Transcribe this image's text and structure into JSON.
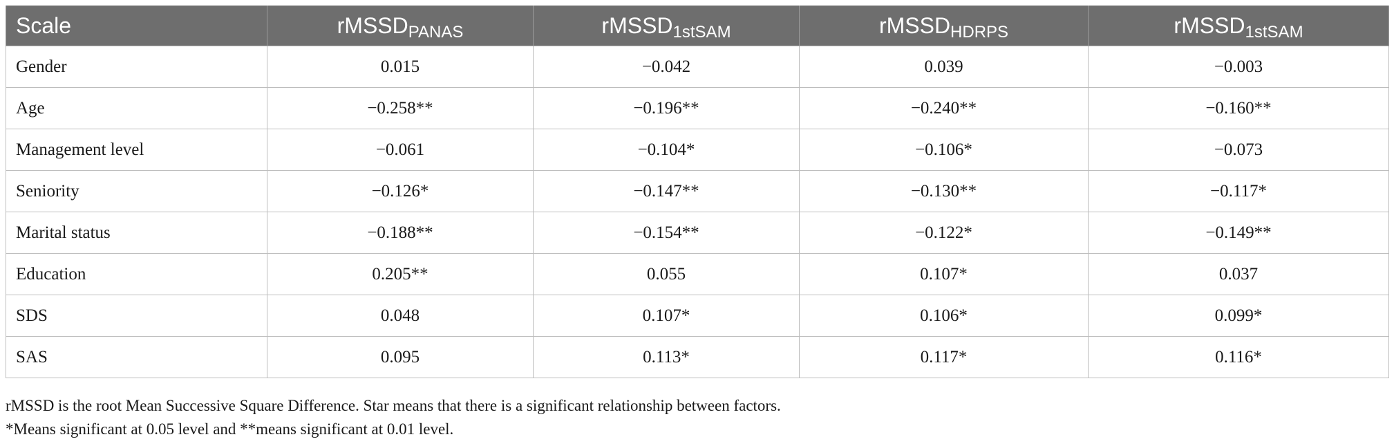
{
  "table": {
    "header": {
      "scale": "Scale",
      "columns": [
        {
          "base": "rMSSD",
          "sub": "PANAS"
        },
        {
          "base": "rMSSD",
          "sub": "1stSAM"
        },
        {
          "base": "rMSSD",
          "sub": "HDRPS"
        },
        {
          "base": "rMSSD",
          "sub": "1stSAM"
        }
      ]
    },
    "rows": [
      {
        "label": "Gender",
        "values": [
          "0.015",
          "−0.042",
          "0.039",
          "−0.003"
        ]
      },
      {
        "label": "Age",
        "values": [
          "−0.258**",
          "−0.196**",
          "−0.240**",
          "−0.160**"
        ]
      },
      {
        "label": "Management level",
        "values": [
          "−0.061",
          "−0.104*",
          "−0.106*",
          "−0.073"
        ]
      },
      {
        "label": "Seniority",
        "values": [
          "−0.126*",
          "−0.147**",
          "−0.130**",
          "−0.117*"
        ]
      },
      {
        "label": "Marital status",
        "values": [
          "−0.188**",
          "−0.154**",
          "−0.122*",
          "−0.149**"
        ]
      },
      {
        "label": "Education",
        "values": [
          "0.205**",
          "0.055",
          "0.107*",
          "0.037"
        ]
      },
      {
        "label": "SDS",
        "values": [
          "0.048",
          "0.107*",
          "0.106*",
          "0.099*"
        ]
      },
      {
        "label": "SAS",
        "values": [
          "0.095",
          "0.113*",
          "0.117*",
          "0.116*"
        ]
      }
    ]
  },
  "notes": {
    "line1": "rMSSD is the root Mean Successive Square Difference. Star means that there is a significant relationship between factors.",
    "line2": "*Means significant at 0.05 level and **means significant at 0.01 level."
  }
}
